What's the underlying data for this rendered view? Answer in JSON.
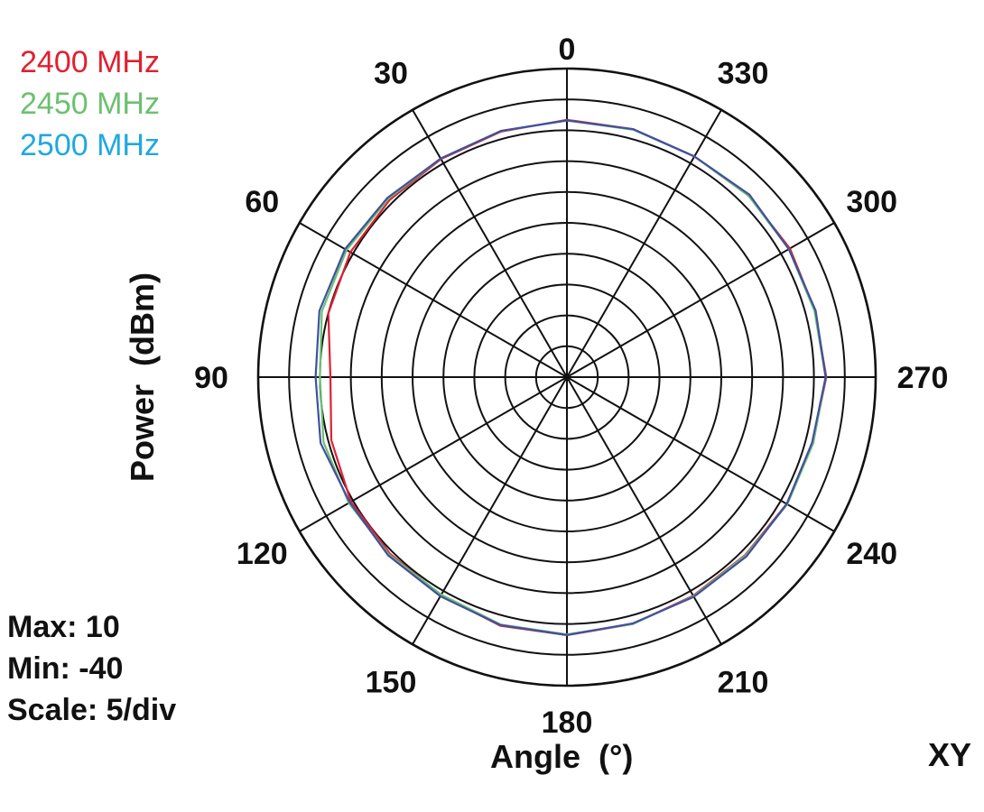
{
  "chart_data": {
    "type": "line",
    "subtype": "polar",
    "angle_direction": "counterclockwise",
    "zero_position": "top",
    "angle_ticks": [
      "0",
      "30",
      "60",
      "90",
      "120",
      "150",
      "180",
      "210",
      "240",
      "270",
      "300",
      "330"
    ],
    "rlim": [
      -40,
      10
    ],
    "r_step": 5,
    "grid": true,
    "xlabel": "Angle  (°)",
    "ylabel": "Power  (dBm)",
    "corner_label": "XY",
    "stats": {
      "max_label": "Max: 10",
      "min_label": "Min: -40",
      "scale_label": "Scale: 5/div"
    },
    "legend_position": "top-left",
    "angles": [
      0,
      15,
      30,
      45,
      60,
      75,
      90,
      105,
      120,
      135,
      150,
      165,
      180,
      195,
      210,
      225,
      240,
      255,
      270,
      285,
      300,
      315,
      330,
      345
    ],
    "series": [
      {
        "name": "2400 MHz",
        "color": "#e02030",
        "values": [
          1.7,
          1.2,
          0.8,
          0.6,
          0.5,
          0.0,
          -1.7,
          -0.5,
          0.4,
          0.5,
          0.8,
          1.7,
          1.8,
          1.4,
          0.9,
          0.8,
          1.1,
          1.2,
          2.0,
          1.6,
          1.7,
          1.6,
          1.3,
          1.6
        ]
      },
      {
        "name": "2450 MHz",
        "color": "#6cc070",
        "values": [
          1.6,
          1.3,
          0.9,
          0.9,
          1.2,
          1.1,
          0.0,
          0.8,
          0.8,
          0.7,
          0.7,
          1.5,
          1.7,
          1.4,
          1.0,
          0.9,
          1.2,
          1.3,
          1.9,
          1.5,
          1.5,
          1.6,
          1.3,
          1.5
        ]
      },
      {
        "name": "2500 MHz",
        "color": "#20a8e0",
        "line_color": "#4050a0",
        "values": [
          1.6,
          1.3,
          0.9,
          1.1,
          1.5,
          1.5,
          0.7,
          1.3,
          0.6,
          0.9,
          1.0,
          1.6,
          1.8,
          1.3,
          1.1,
          1.1,
          1.1,
          1.1,
          1.9,
          1.7,
          1.5,
          1.8,
          1.3,
          1.6
        ]
      }
    ]
  }
}
